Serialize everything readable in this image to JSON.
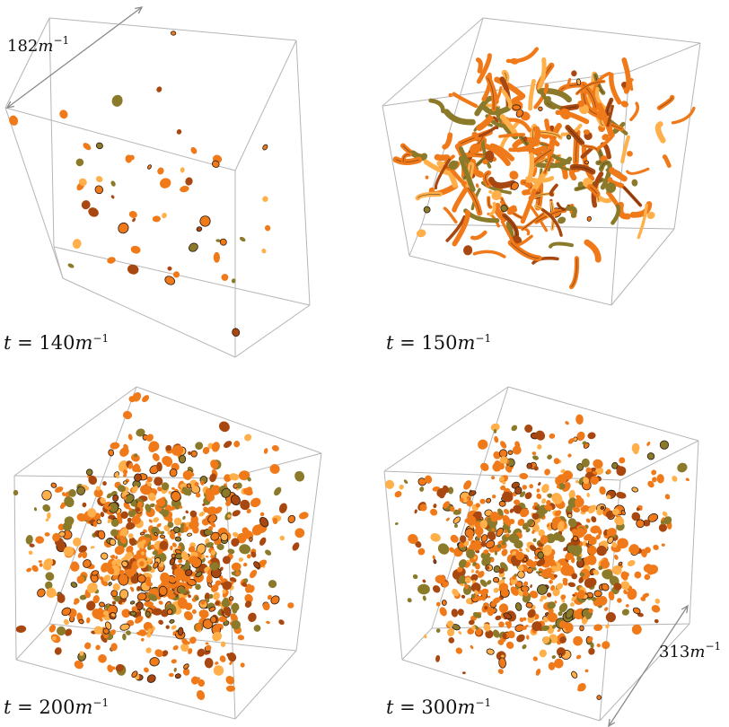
{
  "panels": [
    {
      "time_var": "t",
      "time_eq": " = ",
      "time_value": "140",
      "time_unit": "m",
      "time_exp": "−1",
      "density": 55,
      "mode": "blobs",
      "seed": 11
    },
    {
      "time_var": "t",
      "time_eq": " = ",
      "time_value": "150",
      "time_unit": "m",
      "time_exp": "−1",
      "density": 260,
      "mode": "filaments",
      "seed": 23
    },
    {
      "time_var": "t",
      "time_eq": " = ",
      "time_value": "200",
      "time_unit": "m",
      "time_exp": "−1",
      "density": 900,
      "mode": "blobs",
      "seed": 37
    },
    {
      "time_var": "t",
      "time_eq": " = ",
      "time_value": "300",
      "time_unit": "m",
      "time_exp": "−1",
      "density": 820,
      "mode": "blobs",
      "seed": 53
    }
  ],
  "scale_top": {
    "value": "182",
    "unit": "m",
    "exp": "−1"
  },
  "scale_bottom": {
    "value": "313",
    "unit": "m",
    "exp": "−1"
  },
  "colors": {
    "blob_core": "#f07a1a",
    "blob_light": "#ffb04a",
    "blob_dark": "#a84810",
    "blob_olive": "#8a7a2a",
    "edge": "#2a1a10",
    "cube_line": "#b5b5b5",
    "arrow": "#8a8a8a"
  }
}
